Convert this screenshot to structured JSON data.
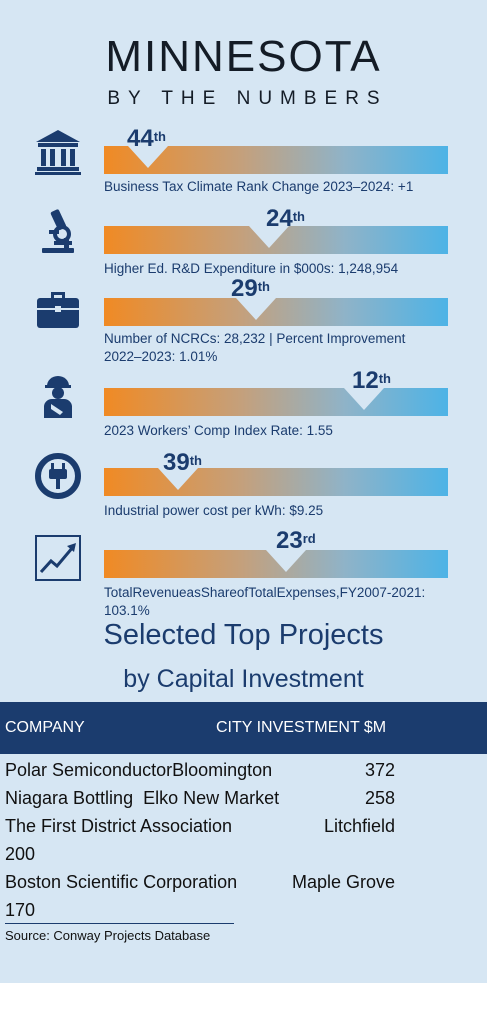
{
  "header": {
    "title": "MINNESOTA",
    "subtitle": "BY THE NUMBERS"
  },
  "colors": {
    "panel_bg": "#d6e6f3",
    "navy": "#1b3c6e",
    "bar_start": "#f08a24",
    "bar_end": "#4db3e6"
  },
  "stats": [
    {
      "icon": "bank-building-icon",
      "rank": "44",
      "suffix": "th",
      "label": "Business Tax Climate Rank Change 2023–2024: +1"
    },
    {
      "icon": "microscope-icon",
      "rank": "24",
      "suffix": "th",
      "label": "Higher Ed. R&D Expenditure in $000s: 1,248,954"
    },
    {
      "icon": "briefcase-icon",
      "rank": "29",
      "suffix": "th",
      "label_line1": "Number of NCRCs: 28,232 | Percent Improvement",
      "label_line2": "2022–2023: 1.01%"
    },
    {
      "icon": "injured-worker-icon",
      "rank": "12",
      "suffix": "th",
      "label": "2023 Workers’ Comp Index Rate: 1.55"
    },
    {
      "icon": "power-plug-icon",
      "rank": "39",
      "suffix": "th",
      "label": "Industrial power cost per kWh: $9.25"
    },
    {
      "icon": "rising-chart-icon",
      "rank": "23",
      "suffix": "rd",
      "label_line1": "TotalRevenueasShareofTotalExpenses,FY2007-2021:",
      "label_line2": "103.1%"
    }
  ],
  "projects": {
    "title_line1": "Selected Top Projects",
    "title_line2": "by Capital Investment",
    "columns": {
      "company": "COMPANY",
      "city_investment": "CITY INVESTMENT $M"
    },
    "rows": [
      {
        "company": "Polar Semiconductor",
        "city": "Bloomington",
        "investment": "372"
      },
      {
        "company": "Niagara Bottling",
        "city": "Elko New Market",
        "investment": "258"
      },
      {
        "company": "The First District Association",
        "city": "Litchfield",
        "investment": "200"
      },
      {
        "company": "Boston Scientific Corporation",
        "city": "Maple Grove",
        "investment": "170"
      }
    ],
    "source": "Source: Conway Projects Database"
  }
}
